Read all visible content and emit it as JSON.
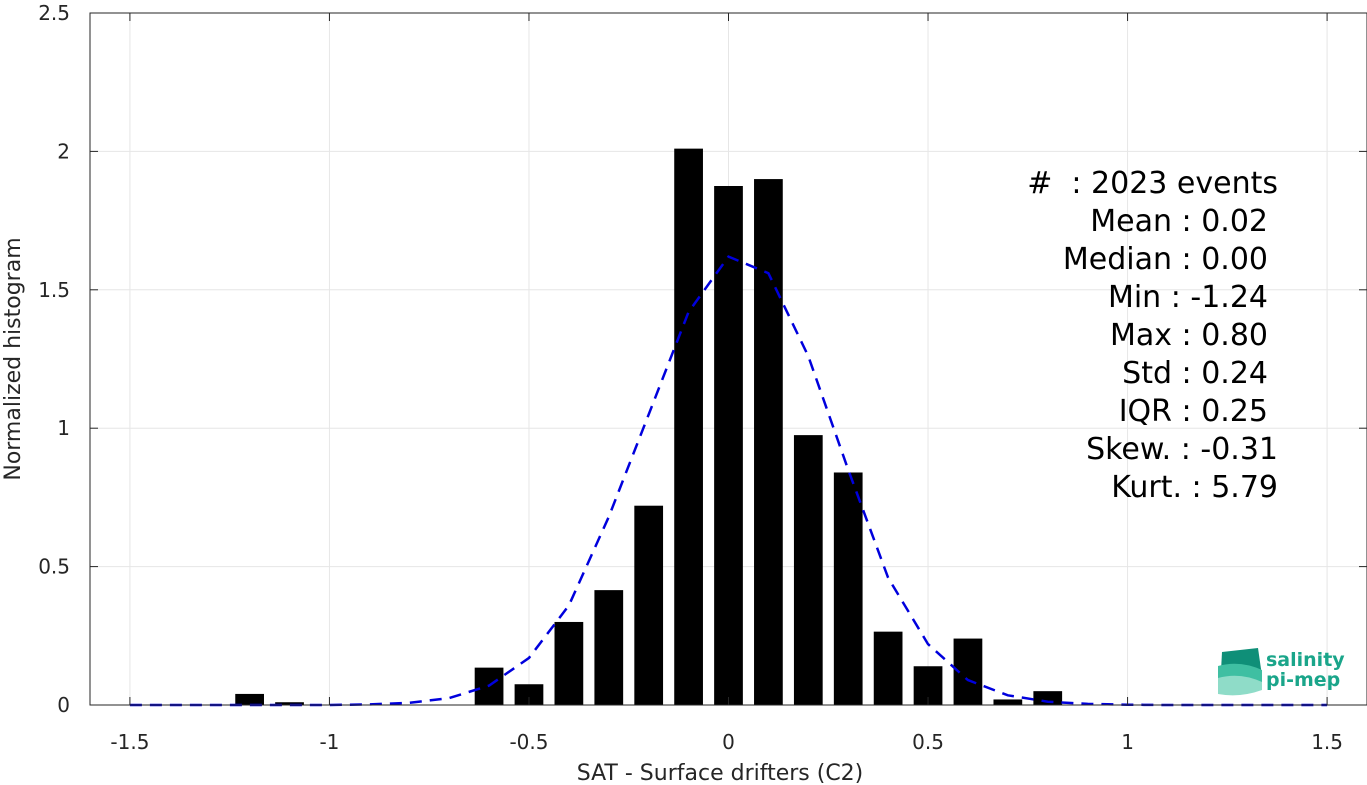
{
  "chart_data": {
    "type": "bar",
    "xlabel": "SAT - Surface drifters (C2)",
    "ylabel": "Normalized histogram",
    "xlim": [
      -1.6,
      1.6
    ],
    "ylim": [
      0,
      2.5
    ],
    "xticks": [
      "-1.5",
      "-1",
      "-0.5",
      "0",
      "0.5",
      "1",
      "1.5"
    ],
    "yticks": [
      "0",
      "0.5",
      "1",
      "1.5",
      "2",
      "2.5"
    ],
    "grid": true,
    "bar_color": "#000000",
    "fit_color": "#0000dd",
    "bins": [
      {
        "x": -1.2,
        "value": 0.04
      },
      {
        "x": -1.1,
        "value": 0.01
      },
      {
        "x": -0.6,
        "value": 0.135
      },
      {
        "x": -0.5,
        "value": 0.075
      },
      {
        "x": -0.4,
        "value": 0.3
      },
      {
        "x": -0.3,
        "value": 0.415
      },
      {
        "x": -0.2,
        "value": 0.72
      },
      {
        "x": -0.1,
        "value": 2.01
      },
      {
        "x": 0.0,
        "value": 1.875
      },
      {
        "x": 0.1,
        "value": 1.9
      },
      {
        "x": 0.2,
        "value": 0.975
      },
      {
        "x": 0.3,
        "value": 0.84
      },
      {
        "x": 0.4,
        "value": 0.265
      },
      {
        "x": 0.5,
        "value": 0.14
      },
      {
        "x": 0.6,
        "value": 0.24
      },
      {
        "x": 0.7,
        "value": 0.02
      },
      {
        "x": 0.8,
        "value": 0.05
      }
    ],
    "fit_line": {
      "style": "dashed",
      "x": [
        -1.5,
        -1.4,
        -1.3,
        -1.2,
        -1.1,
        -1.0,
        -0.9,
        -0.8,
        -0.7,
        -0.6,
        -0.5,
        -0.4,
        -0.3,
        -0.2,
        -0.1,
        0.0,
        0.1,
        0.2,
        0.3,
        0.4,
        0.5,
        0.6,
        0.7,
        0.8,
        0.9,
        1.0,
        1.1,
        1.2,
        1.3,
        1.4,
        1.5
      ],
      "y": [
        0,
        0,
        0,
        0,
        0,
        0,
        0.002,
        0.008,
        0.025,
        0.07,
        0.17,
        0.36,
        0.68,
        1.05,
        1.42,
        1.62,
        1.56,
        1.26,
        0.85,
        0.46,
        0.22,
        0.09,
        0.035,
        0.012,
        0.004,
        0.001,
        0,
        0,
        0,
        0,
        0
      ]
    }
  },
  "stats": [
    {
      "label": "#  : 2023 events"
    },
    {
      "label": "Mean : 0.02"
    },
    {
      "label": "Median : 0.00"
    },
    {
      "label": "Min : -1.24"
    },
    {
      "label": "Max : 0.80"
    },
    {
      "label": "Std : 0.24"
    },
    {
      "label": "IQR : 0.25"
    },
    {
      "label": "Skew. : -0.31"
    },
    {
      "label": "Kurt. : 5.79"
    }
  ],
  "logo": {
    "line1": "salinity",
    "line2": "pi-mep"
  }
}
